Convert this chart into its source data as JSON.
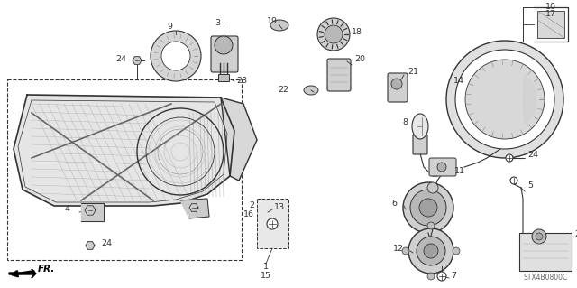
{
  "bg_color": "#ffffff",
  "diagram_code": "STX4B0800C",
  "line_color": "#333333",
  "gray_fill": "#cccccc",
  "lt_gray": "#aaaaaa",
  "dk_gray": "#444444"
}
